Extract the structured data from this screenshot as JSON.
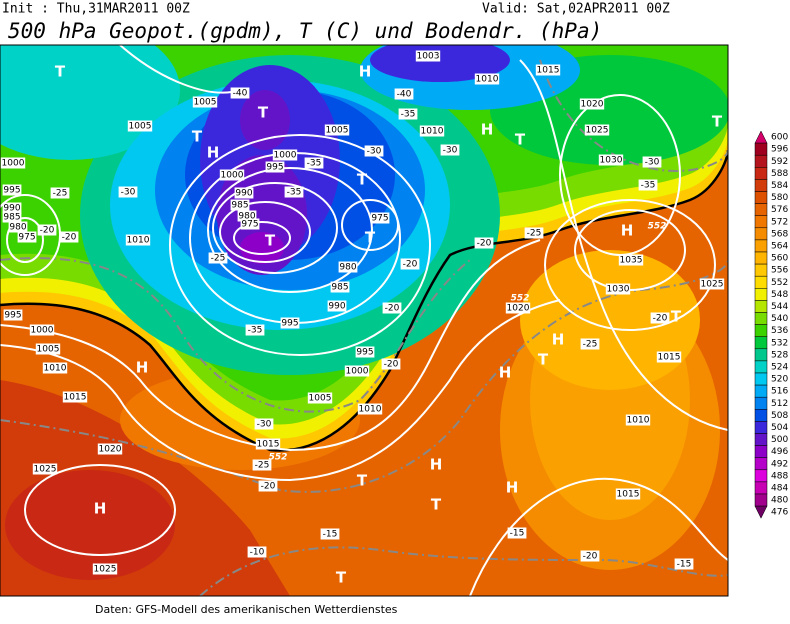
{
  "header": {
    "init": "Init : Thu,31MAR2011 00Z",
    "valid": "Valid: Sat,02APR2011 00Z",
    "title": "500 hPa Geopot.(gpdm), T (C) und Bodendr. (hPa)"
  },
  "footer": "Daten: GFS-Modell des amerikanischen Wetterdienstes",
  "legend": {
    "levels": [
      {
        "value": 600,
        "color": "#d4006a"
      },
      {
        "value": 596,
        "color": "#a00020"
      },
      {
        "value": 592,
        "color": "#b4141e"
      },
      {
        "value": 588,
        "color": "#c82814"
      },
      {
        "value": 584,
        "color": "#d23c0a"
      },
      {
        "value": 580,
        "color": "#dc5000"
      },
      {
        "value": 576,
        "color": "#e66400"
      },
      {
        "value": 572,
        "color": "#f07800"
      },
      {
        "value": 568,
        "color": "#f58c00"
      },
      {
        "value": 564,
        "color": "#faa000"
      },
      {
        "value": 560,
        "color": "#ffb400"
      },
      {
        "value": 556,
        "color": "#ffc800"
      },
      {
        "value": 552,
        "color": "#ffdc00"
      },
      {
        "value": 548,
        "color": "#f0f000"
      },
      {
        "value": 544,
        "color": "#b4e600"
      },
      {
        "value": 540,
        "color": "#78dc00"
      },
      {
        "value": 536,
        "color": "#3cd200"
      },
      {
        "value": 532,
        "color": "#00c83c"
      },
      {
        "value": 528,
        "color": "#00c88c"
      },
      {
        "value": 524,
        "color": "#00d2c8"
      },
      {
        "value": 520,
        "color": "#00c8f0"
      },
      {
        "value": 516,
        "color": "#00aaf5"
      },
      {
        "value": 512,
        "color": "#0082f0"
      },
      {
        "value": 508,
        "color": "#0050e6"
      },
      {
        "value": 504,
        "color": "#3c28dc"
      },
      {
        "value": 500,
        "color": "#6414c8"
      },
      {
        "value": 496,
        "color": "#8c00c8"
      },
      {
        "value": 492,
        "color": "#b400c8"
      },
      {
        "value": 488,
        "color": "#dc00dc"
      },
      {
        "value": 484,
        "color": "#c800b4"
      },
      {
        "value": 480,
        "color": "#a0008c"
      },
      {
        "value": 476,
        "color": "#6e0064"
      }
    ]
  },
  "map": {
    "letters": [
      "T",
      "H",
      "T",
      "T",
      "H",
      "H",
      "T",
      "T",
      "T",
      "T",
      "T",
      "H",
      "H",
      "T",
      "H",
      "T",
      "H",
      "H",
      "T",
      "H",
      "T",
      "H",
      "T"
    ],
    "pressure": [
      "1005",
      "1005",
      "1005",
      "1010",
      "1000",
      "995",
      "1000",
      "990",
      "985",
      "980",
      "975",
      "975",
      "980",
      "985",
      "990",
      "995",
      "995",
      "1000",
      "1005",
      "1010",
      "1015",
      "1010",
      "1000",
      "995",
      "990",
      "985",
      "980",
      "975",
      "995",
      "1000",
      "1005",
      "1010",
      "1015",
      "1020",
      "1025",
      "1025",
      "1003",
      "1010",
      "1015",
      "1020",
      "1025",
      "1030",
      "1035",
      "1030",
      "1025",
      "1020",
      "1015",
      "1010",
      "1015"
    ],
    "temperature": [
      "-40",
      "-35",
      "-40",
      "-30",
      "-35",
      "-35",
      "-30",
      "-30",
      "-25",
      "-20",
      "-20",
      "-25",
      "-20",
      "-25",
      "-20",
      "-35",
      "-20",
      "-20",
      "-30",
      "-25",
      "-20",
      "-10",
      "-15",
      "-15",
      "-20",
      "-15",
      "-25",
      "-20",
      "-30",
      "-35"
    ],
    "contour552": [
      "552",
      "552",
      "552"
    ]
  }
}
